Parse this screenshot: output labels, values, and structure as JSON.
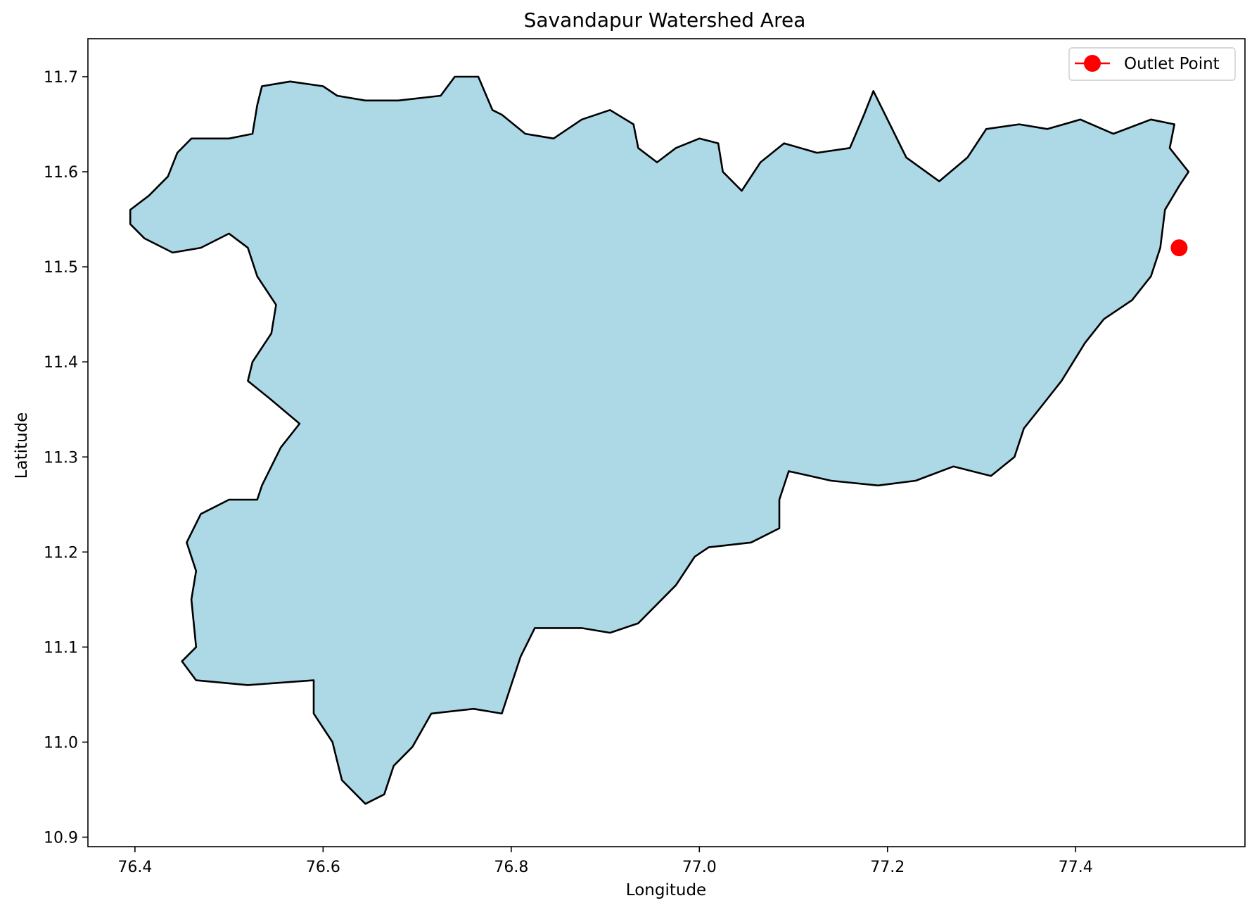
{
  "chart_data": {
    "type": "map",
    "title": "Savandapur Watershed Area",
    "xlabel": "Longitude",
    "ylabel": "Latitude",
    "xlim": [
      76.35,
      77.58
    ],
    "ylim": [
      10.89,
      11.74
    ],
    "xticks": [
      76.4,
      76.6,
      76.8,
      77.0,
      77.2,
      77.4
    ],
    "xtick_labels": [
      "76.4",
      "76.6",
      "76.8",
      "77.0",
      "77.2",
      "77.4"
    ],
    "yticks": [
      10.9,
      11.0,
      11.1,
      11.2,
      11.3,
      11.4,
      11.5,
      11.6,
      11.7
    ],
    "ytick_labels": [
      "10.9",
      "11.0",
      "11.1",
      "11.2",
      "11.3",
      "11.4",
      "11.5",
      "11.6",
      "11.7"
    ],
    "grid": false,
    "legend": {
      "position": "top-right",
      "entries": [
        {
          "label": "Outlet Point",
          "marker": "circle",
          "color": "#ff0000"
        }
      ]
    },
    "watershed": {
      "fill": "#add8e6",
      "edge": "#000000",
      "boundary": [
        [
          76.41,
          11.53
        ],
        [
          76.44,
          11.515
        ],
        [
          76.47,
          11.52
        ],
        [
          76.5,
          11.535
        ],
        [
          76.52,
          11.52
        ],
        [
          76.53,
          11.49
        ],
        [
          76.55,
          11.46
        ],
        [
          76.545,
          11.43
        ],
        [
          76.525,
          11.4
        ],
        [
          76.52,
          11.38
        ],
        [
          76.545,
          11.36
        ],
        [
          76.575,
          11.335
        ],
        [
          76.555,
          11.31
        ],
        [
          76.535,
          11.27
        ],
        [
          76.53,
          11.255
        ],
        [
          76.5,
          11.255
        ],
        [
          76.47,
          11.24
        ],
        [
          76.455,
          11.21
        ],
        [
          76.465,
          11.18
        ],
        [
          76.46,
          11.15
        ],
        [
          76.465,
          11.1
        ],
        [
          76.45,
          11.085
        ],
        [
          76.465,
          11.065
        ],
        [
          76.52,
          11.06
        ],
        [
          76.59,
          11.065
        ],
        [
          76.59,
          11.03
        ],
        [
          76.61,
          11.0
        ],
        [
          76.62,
          10.96
        ],
        [
          76.645,
          10.935
        ],
        [
          76.665,
          10.945
        ],
        [
          76.675,
          10.975
        ],
        [
          76.695,
          10.995
        ],
        [
          76.715,
          11.03
        ],
        [
          76.76,
          11.035
        ],
        [
          76.79,
          11.03
        ],
        [
          76.8,
          11.06
        ],
        [
          76.81,
          11.09
        ],
        [
          76.825,
          11.12
        ],
        [
          76.875,
          11.12
        ],
        [
          76.905,
          11.115
        ],
        [
          76.935,
          11.125
        ],
        [
          76.975,
          11.165
        ],
        [
          76.995,
          11.195
        ],
        [
          77.01,
          11.205
        ],
        [
          77.055,
          11.21
        ],
        [
          77.085,
          11.225
        ],
        [
          77.085,
          11.255
        ],
        [
          77.095,
          11.285
        ],
        [
          77.14,
          11.275
        ],
        [
          77.19,
          11.27
        ],
        [
          77.23,
          11.275
        ],
        [
          77.27,
          11.29
        ],
        [
          77.31,
          11.28
        ],
        [
          77.335,
          11.3
        ],
        [
          77.345,
          11.33
        ],
        [
          77.365,
          11.355
        ],
        [
          77.385,
          11.38
        ],
        [
          77.41,
          11.42
        ],
        [
          77.43,
          11.445
        ],
        [
          77.46,
          11.465
        ],
        [
          77.48,
          11.49
        ],
        [
          77.49,
          11.52
        ],
        [
          77.495,
          11.56
        ],
        [
          77.51,
          11.585
        ],
        [
          77.52,
          11.6
        ],
        [
          77.5,
          11.625
        ],
        [
          77.505,
          11.65
        ],
        [
          77.48,
          11.655
        ],
        [
          77.44,
          11.64
        ],
        [
          77.405,
          11.655
        ],
        [
          77.37,
          11.645
        ],
        [
          77.34,
          11.65
        ],
        [
          77.305,
          11.645
        ],
        [
          77.285,
          11.615
        ],
        [
          77.255,
          11.59
        ],
        [
          77.22,
          11.615
        ],
        [
          77.2,
          11.655
        ],
        [
          77.185,
          11.685
        ],
        [
          77.175,
          11.66
        ],
        [
          77.16,
          11.625
        ],
        [
          77.125,
          11.62
        ],
        [
          77.09,
          11.63
        ],
        [
          77.065,
          11.61
        ],
        [
          77.045,
          11.58
        ],
        [
          77.025,
          11.6
        ],
        [
          77.02,
          11.63
        ],
        [
          77.0,
          11.635
        ],
        [
          76.975,
          11.625
        ],
        [
          76.955,
          11.61
        ],
        [
          76.935,
          11.625
        ],
        [
          76.93,
          11.65
        ],
        [
          76.905,
          11.665
        ],
        [
          76.875,
          11.655
        ],
        [
          76.845,
          11.635
        ],
        [
          76.815,
          11.64
        ],
        [
          76.79,
          11.66
        ],
        [
          76.78,
          11.665
        ],
        [
          76.765,
          11.7
        ],
        [
          76.74,
          11.7
        ],
        [
          76.725,
          11.68
        ],
        [
          76.68,
          11.675
        ],
        [
          76.645,
          11.675
        ],
        [
          76.615,
          11.68
        ],
        [
          76.6,
          11.69
        ],
        [
          76.565,
          11.695
        ],
        [
          76.535,
          11.69
        ],
        [
          76.53,
          11.67
        ],
        [
          76.525,
          11.64
        ],
        [
          76.5,
          11.635
        ],
        [
          76.46,
          11.635
        ],
        [
          76.445,
          11.62
        ],
        [
          76.435,
          11.595
        ],
        [
          76.415,
          11.575
        ],
        [
          76.395,
          11.56
        ],
        [
          76.395,
          11.545
        ]
      ]
    },
    "outlet_point": {
      "label": "Outlet Point",
      "x": 77.51,
      "y": 11.52,
      "color": "#ff0000"
    }
  }
}
